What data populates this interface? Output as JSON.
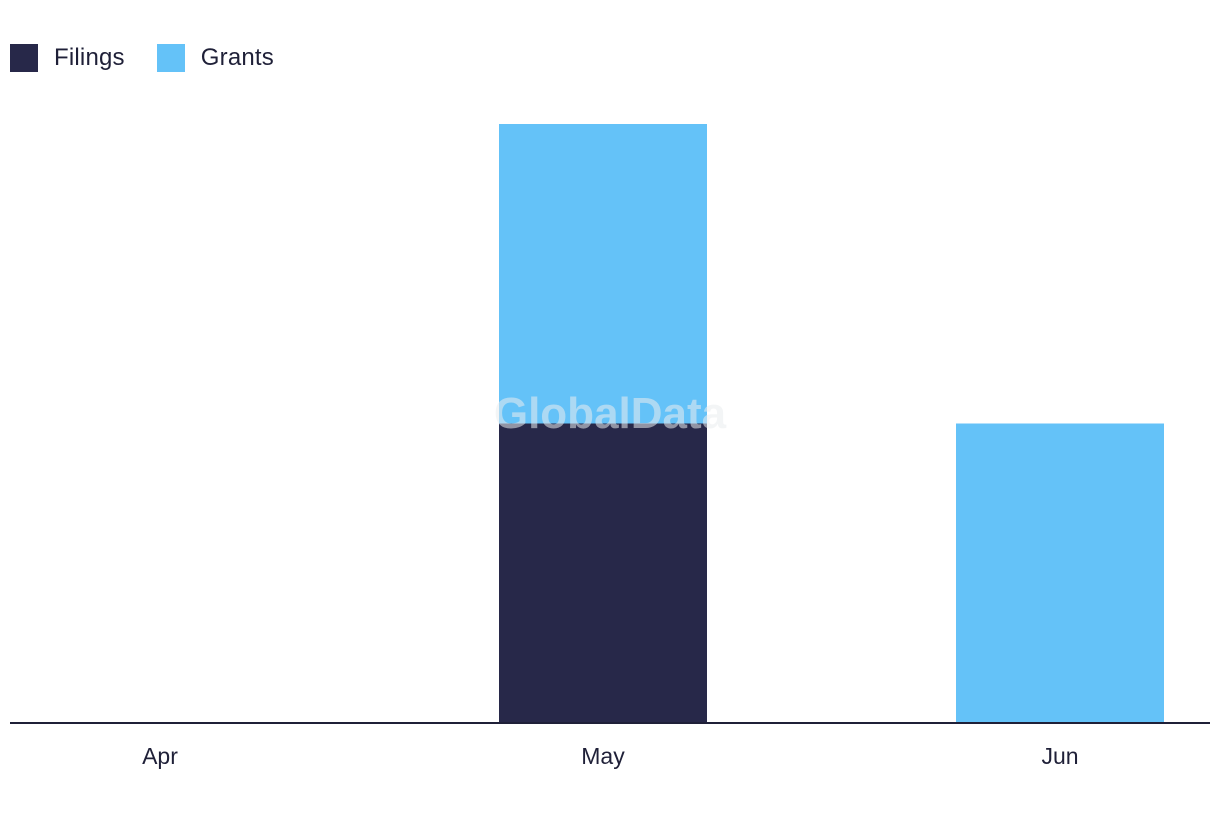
{
  "legend": [
    {
      "label": "Filings",
      "color": "#272849"
    },
    {
      "label": "Grants",
      "color": "#64c2f8"
    }
  ],
  "watermark": "GlobalData",
  "chart_data": {
    "type": "bar",
    "stacked": true,
    "categories": [
      "Apr",
      "May",
      "Jun"
    ],
    "series": [
      {
        "name": "Filings",
        "color": "#272849",
        "values": [
          0,
          1,
          0
        ]
      },
      {
        "name": "Grants",
        "color": "#64c2f8",
        "values": [
          0,
          1,
          1
        ]
      }
    ],
    "ylim": [
      0,
      2
    ],
    "title": "",
    "xlabel": "",
    "ylabel": "",
    "grid": false,
    "legend_position": "top-left"
  }
}
